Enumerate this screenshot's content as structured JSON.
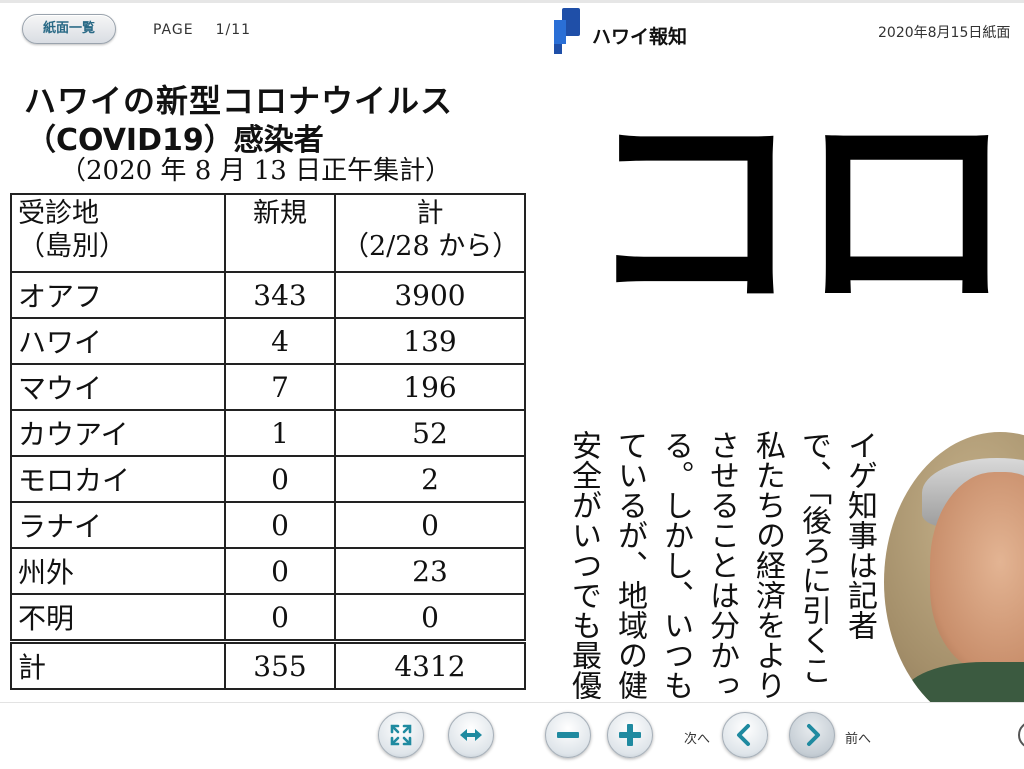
{
  "header": {
    "list_button": "紙面一覧",
    "page_label": "PAGE",
    "page_number": "1/11",
    "brand": "ハワイ報知",
    "date": "2020年8月15日紙面"
  },
  "article": {
    "title_line1": "ハワイの新型コロナウイルス",
    "title_line2": "（COVID19）感染者",
    "title_line3": "（2020 年 8 月 13 日正午集計）",
    "table": {
      "headers": [
        "受診地",
        "（島別）",
        "新規",
        "計",
        "（2/28 から）"
      ],
      "rows": [
        {
          "region": "オアフ",
          "new": "343",
          "total": "3900"
        },
        {
          "region": "ハワイ",
          "new": "4",
          "total": "139"
        },
        {
          "region": "マウイ",
          "new": "7",
          "total": "196"
        },
        {
          "region": "カウアイ",
          "new": "1",
          "total": "52"
        },
        {
          "region": "モロカイ",
          "new": "0",
          "total": "2"
        },
        {
          "region": "ラナイ",
          "new": "0",
          "total": "0"
        },
        {
          "region": "州外",
          "new": "0",
          "total": "23"
        },
        {
          "region": "不明",
          "new": "0",
          "total": "0"
        }
      ],
      "total": {
        "label": "計",
        "new": "355",
        "total": "4312"
      }
    },
    "headline": "コロナ",
    "body_columns": [
      "イゲ知事は記者",
      "で、「後ろに引くこ",
      "私たちの経済をより",
      "させることは分かっ",
      "る。しかし、いつも",
      "ているが、地域の健",
      "安全がいつでも最優"
    ]
  },
  "toolbar": {
    "prev_label": "次へ",
    "next_label": "前へ"
  },
  "icons": {
    "fit": "fit-screen-icon",
    "width": "fit-width-icon",
    "zoom_out": "minus-icon",
    "zoom_in": "plus-icon",
    "left": "chevron-left-icon",
    "right": "chevron-right-icon"
  },
  "colors": {
    "brand_blue": "#1f4fa8",
    "icon_teal": "#1f8aa0",
    "button_text": "#2a6a86"
  }
}
